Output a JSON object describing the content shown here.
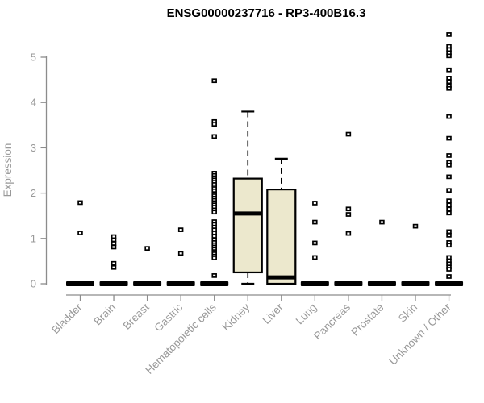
{
  "chart_data": {
    "type": "boxplot",
    "title": "ENSG00000237716 - RP3-400B16.3",
    "ylabel": "Expression",
    "xlabel": "",
    "ylim": [
      0,
      5.6
    ],
    "yticks": [
      0,
      1,
      2,
      3,
      4,
      5
    ],
    "grid": false,
    "legend": null,
    "colors": {
      "box_fill": "#ece8cd",
      "box_border": "#000000",
      "median": "#000000",
      "axis": "#8c8c8c",
      "tick_label": "#999999",
      "title": "#000000",
      "point_fill": "#ffffff",
      "point_border": "#000000",
      "background": "#ffffff"
    },
    "categories": [
      "Bladder",
      "Brain",
      "Breast",
      "Gastric",
      "Hematopoietic cells",
      "Kidney",
      "Liver",
      "Lung",
      "Pancreas",
      "Prostate",
      "Skin",
      "Unknown / Other"
    ],
    "groups": [
      {
        "label": "Bladder",
        "zero_bar": true,
        "points": [
          1.79,
          1.12
        ]
      },
      {
        "label": "Brain",
        "zero_bar": true,
        "points": [
          1.04,
          0.97,
          0.89,
          0.81,
          0.45,
          0.36
        ]
      },
      {
        "label": "Breast",
        "zero_bar": true,
        "points": [
          0.78
        ]
      },
      {
        "label": "Gastric",
        "zero_bar": true,
        "points": [
          1.19,
          0.67
        ]
      },
      {
        "label": "Hematopoietic cells",
        "zero_bar": true,
        "points": [
          4.48,
          3.58,
          3.52,
          3.25,
          2.44,
          2.39,
          2.34,
          2.29,
          2.24,
          2.19,
          2.14,
          2.1,
          2.05,
          1.99,
          1.94,
          1.89,
          1.84,
          1.79,
          1.74,
          1.69,
          1.63,
          1.58,
          1.37,
          1.31,
          1.25,
          1.19,
          1.12,
          1.05,
          0.96,
          0.91,
          0.86,
          0.81,
          0.76,
          0.71,
          0.66,
          0.61,
          0.57,
          0.18
        ]
      },
      {
        "label": "Kidney",
        "zero_bar": false,
        "box": {
          "low": 0,
          "q1": 0.25,
          "median": 1.55,
          "q3": 2.32,
          "high": 3.8
        },
        "points": []
      },
      {
        "label": "Liver",
        "zero_bar": false,
        "box": {
          "low": 0,
          "q1": 0,
          "median": 0.14,
          "q3": 2.08,
          "high": 2.76
        },
        "points": []
      },
      {
        "label": "Lung",
        "zero_bar": true,
        "points": [
          1.78,
          1.36,
          0.9,
          0.58
        ]
      },
      {
        "label": "Pancreas",
        "zero_bar": true,
        "points": [
          3.3,
          1.65,
          1.53,
          1.11
        ]
      },
      {
        "label": "Prostate",
        "zero_bar": true,
        "points": [
          1.36
        ]
      },
      {
        "label": "Skin",
        "zero_bar": true,
        "points": [
          1.27
        ]
      },
      {
        "label": "Unknown / Other",
        "zero_bar": true,
        "points": [
          5.5,
          5.24,
          5.17,
          5.1,
          5.03,
          4.72,
          4.54,
          4.46,
          4.37,
          4.31,
          3.69,
          3.21,
          2.83,
          2.68,
          2.62,
          2.36,
          2.06,
          1.83,
          1.74,
          1.65,
          1.56,
          1.15,
          1.07,
          0.91,
          0.85,
          0.58,
          0.5,
          0.44,
          0.37,
          0.32,
          0.16
        ]
      }
    ]
  }
}
